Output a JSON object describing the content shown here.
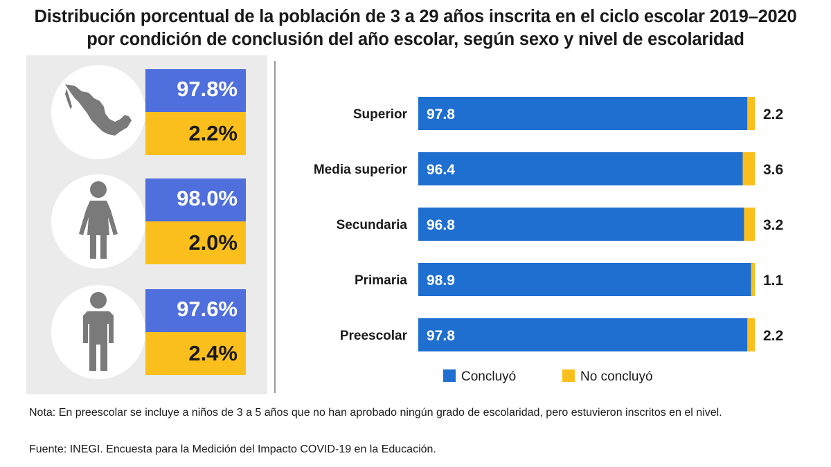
{
  "title_line1": "Distribución porcentual de la población de 3 a 29 años inscrita en el ciclo escolar 2019–2020",
  "title_line2": "por condición de conclusión del año escolar, según sexo y nivel de escolaridad",
  "colors": {
    "concluyo": "#4f6fdc",
    "bar": "#1f6fd0",
    "no_concluyo": "#fbbf1d",
    "panel": "#ebebeb"
  },
  "summary": [
    {
      "icon": "mexico-map-icon",
      "concluyo": "97.8%",
      "no_concluyo": "2.2%"
    },
    {
      "icon": "woman-icon",
      "concluyo": "98.0%",
      "no_concluyo": "2.0%"
    },
    {
      "icon": "man-icon",
      "concluyo": "97.6%",
      "no_concluyo": "2.4%"
    }
  ],
  "chart_data": {
    "type": "bar",
    "orientation": "horizontal",
    "stacked": true,
    "categories": [
      "Superior",
      "Media superior",
      "Secundaria",
      "Primaria",
      "Preescolar"
    ],
    "series": [
      {
        "name": "Concluyó",
        "values": [
          97.8,
          96.4,
          96.8,
          98.9,
          97.8
        ]
      },
      {
        "name": "No concluyó",
        "values": [
          2.2,
          3.6,
          3.2,
          1.1,
          2.2
        ]
      }
    ],
    "xlim": [
      0,
      100
    ],
    "legend": [
      "Concluyó",
      "No concluyó"
    ],
    "legend_position": "bottom"
  },
  "note": "Nota: En preescolar se incluye a niños de 3 a 5 años que no han aprobado ningún grado de escolaridad, pero estuvieron inscritos en el nivel.",
  "source": "Fuente: INEGI. Encuesta para la Medición del Impacto COVID-19 en la Educación."
}
